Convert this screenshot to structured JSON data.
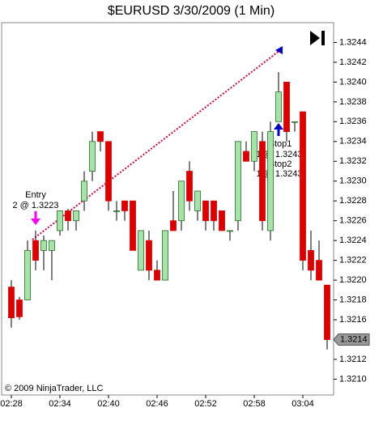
{
  "chart_data": {
    "type": "candlestick",
    "title": "$EURUSD  3/30/2009 (1 Min)",
    "categories": [
      "02:28",
      null,
      null,
      null,
      null,
      null,
      "02:34",
      null,
      null,
      null,
      null,
      null,
      "02:40",
      null,
      null,
      null,
      null,
      null,
      "02:46",
      null,
      null,
      null,
      null,
      null,
      "02:52",
      null,
      null,
      null,
      null,
      null,
      "02:58",
      null,
      null,
      null,
      null,
      null,
      "03:04",
      null,
      null,
      null
    ],
    "series": [
      {
        "up_color": "#a6e3a6",
        "down_color": "#dd0000",
        "open": [
          1.32193,
          1.3218,
          1.3218,
          1.3224,
          1.3223,
          1.3223,
          1.3225,
          1.3227,
          1.3226,
          1.3228,
          1.3231,
          1.3235,
          1.3234,
          1.3227,
          1.3228,
          1.3228,
          1.3221,
          1.3224,
          1.3221,
          1.322,
          1.3226,
          1.3226,
          1.3231,
          1.3227,
          1.3228,
          1.3228,
          1.3227,
          1.3225,
          1.3226,
          1.3233,
          1.3232,
          1.3234,
          1.3225,
          1.3236,
          1.324,
          1.3236,
          1.3237,
          1.3223,
          1.3222,
          1.32195
        ],
        "high": [
          1.322,
          1.32183,
          1.3224,
          1.3225,
          1.32245,
          1.3224,
          1.3227,
          1.32272,
          1.3227,
          1.3231,
          1.3235,
          1.3235,
          1.3234,
          1.3228,
          1.3228,
          1.3228,
          1.3225,
          1.3225,
          1.3222,
          1.3225,
          1.3229,
          1.323,
          1.3232,
          1.3229,
          1.3228,
          1.3228,
          1.3227,
          1.3225,
          1.3234,
          1.3234,
          1.3235,
          1.3235,
          1.3236,
          1.3241,
          1.324,
          1.3236,
          1.3237,
          1.3225,
          1.3224,
          1.32195
        ],
        "low": [
          1.32152,
          1.3216,
          1.3218,
          1.3221,
          1.3221,
          1.322,
          1.32245,
          1.3225,
          1.3225,
          1.3227,
          1.323,
          1.3233,
          1.3227,
          1.3226,
          1.3226,
          1.3223,
          1.3221,
          1.322,
          1.322,
          1.322,
          1.3225,
          1.3225,
          1.3227,
          1.3226,
          1.3225,
          1.3225,
          1.3225,
          1.3224,
          1.3225,
          1.3232,
          1.3231,
          1.3225,
          1.3224,
          1.3236,
          1.3234,
          1.3235,
          1.3221,
          1.322,
          1.322,
          1.3213
        ],
        "close": [
          1.32162,
          1.32163,
          1.3223,
          1.3222,
          1.3224,
          1.3224,
          1.3227,
          1.3226,
          1.3227,
          1.323,
          1.3234,
          1.3234,
          1.3228,
          1.3227,
          1.3227,
          1.3223,
          1.3225,
          1.3221,
          1.322,
          1.3225,
          1.3225,
          1.323,
          1.3228,
          1.3229,
          1.3226,
          1.3226,
          1.3225,
          1.3225,
          1.3234,
          1.3232,
          1.3235,
          1.3226,
          1.3235,
          1.3239,
          1.3235,
          1.3236,
          1.3222,
          1.3221,
          1.322,
          1.3214
        ]
      }
    ],
    "ylim": [
      1.32084,
      1.3246
    ],
    "yticks": [
      {
        "value": 1.321,
        "label": "1.3210"
      },
      {
        "value": 1.3212,
        "label": "1.3212"
      },
      {
        "value": 1.3214,
        "label": "1.3214"
      },
      {
        "value": 1.3216,
        "label": "1.3216"
      },
      {
        "value": 1.3218,
        "label": "1.3218"
      },
      {
        "value": 1.322,
        "label": "1.3220"
      },
      {
        "value": 1.3222,
        "label": "1.3222"
      },
      {
        "value": 1.3224,
        "label": "1.3224"
      },
      {
        "value": 1.3226,
        "label": "1.3226"
      },
      {
        "value": 1.3228,
        "label": "1.3228"
      },
      {
        "value": 1.323,
        "label": "1.3230"
      },
      {
        "value": 1.3232,
        "label": "1.3232"
      },
      {
        "value": 1.3234,
        "label": "1.3234"
      },
      {
        "value": 1.3236,
        "label": "1.3236"
      },
      {
        "value": 1.3238,
        "label": "1.3238"
      },
      {
        "value": 1.324,
        "label": "1.3240"
      },
      {
        "value": 1.3242,
        "label": "1.3242"
      },
      {
        "value": 1.3244,
        "label": "1.3244"
      }
    ],
    "grid": false,
    "annotations": {
      "entry": "Entry",
      "entry_fill": "2 @ 1.3223",
      "stop1": "Stop1",
      "stop1_fill": "1 @ 1.3243",
      "stop2": "Stop2",
      "stop2_fill": "1 @ 1.3243",
      "copyright": "© 2009 NinjaTrader, LLC"
    }
  }
}
